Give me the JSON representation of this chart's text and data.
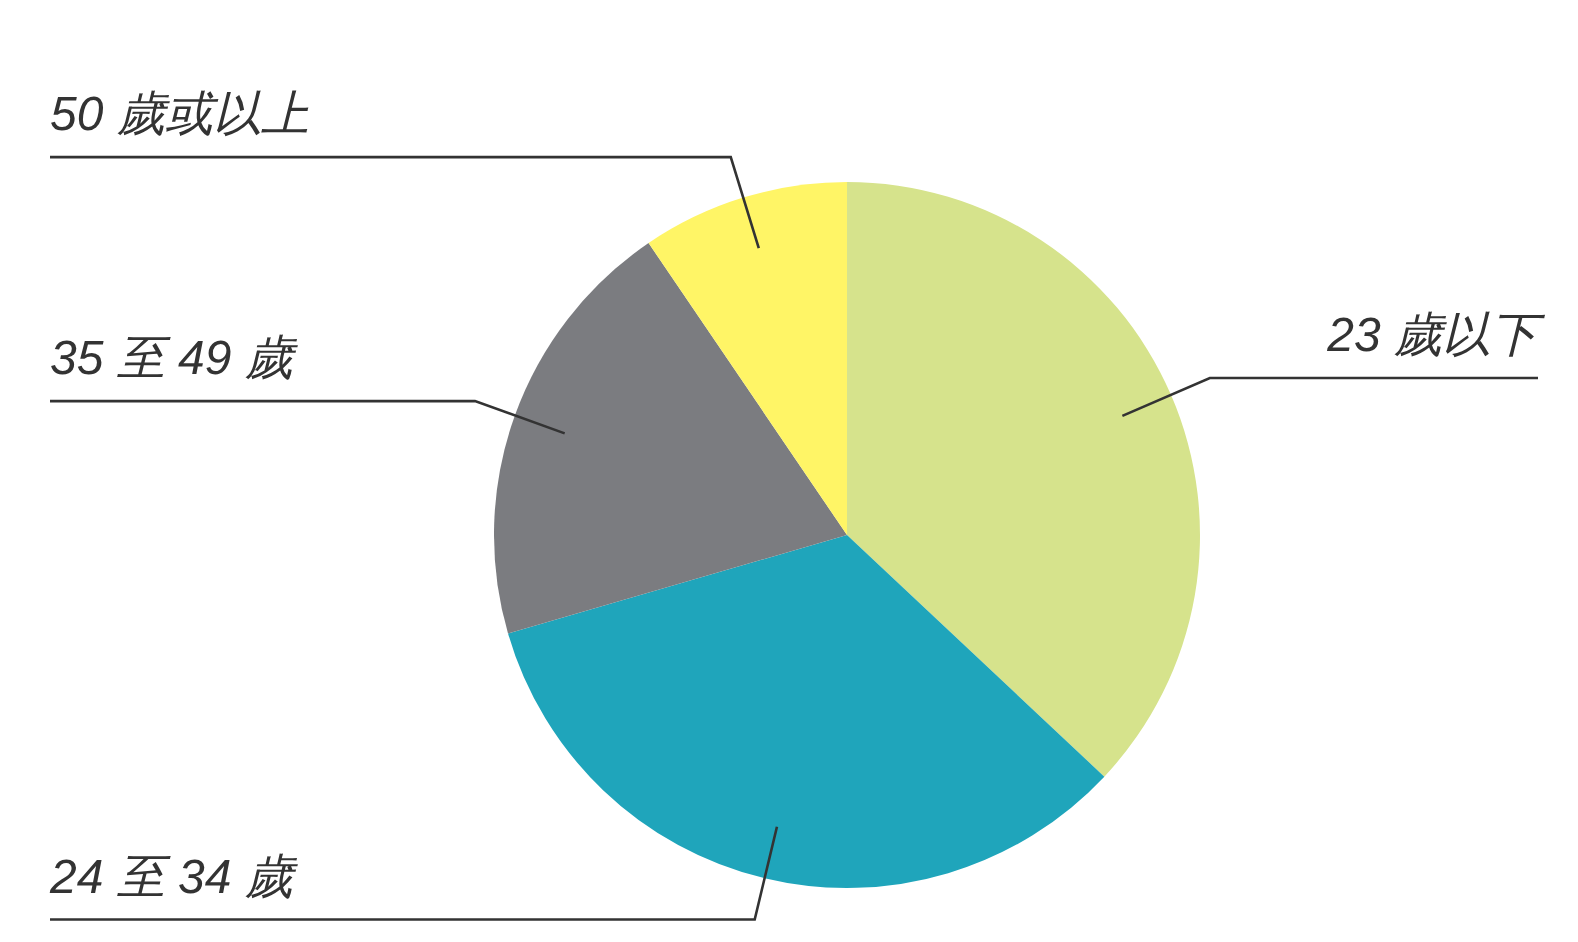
{
  "chart_data": {
    "type": "pie",
    "categories": [
      "23 歲以下",
      "24 至 34 歲",
      "35 至 49 歲",
      "50 歲或以上"
    ],
    "values": [
      37,
      33.5,
      20,
      9.5
    ],
    "colors": [
      "#d6e38c",
      "#1fa5bb",
      "#7b7c80",
      "#fff566"
    ],
    "legend": false
  }
}
